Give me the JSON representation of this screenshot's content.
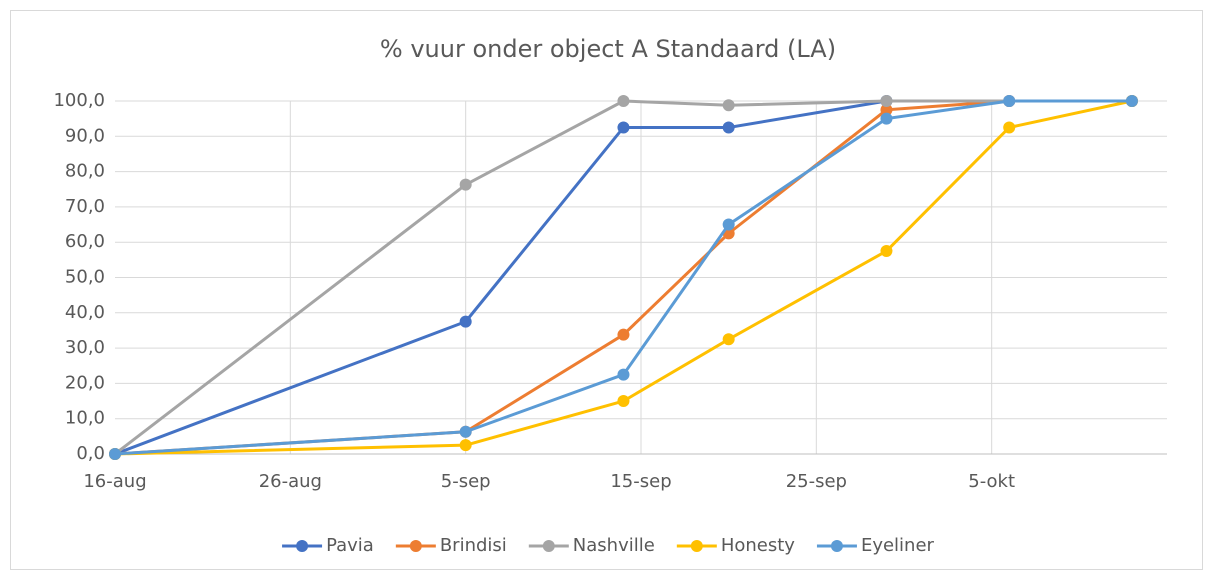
{
  "chart_data": {
    "type": "line",
    "title": "% vuur onder object A Standaard (LA)",
    "x": [
      "16-aug",
      "5-sep",
      "14-sep",
      "20-sep",
      "29-sep",
      "6-okt",
      "13-okt"
    ],
    "series": [
      {
        "name": "Pavia",
        "color": "#4472c4",
        "values": [
          0,
          37.5,
          92.5,
          92.5,
          100,
          100,
          100
        ]
      },
      {
        "name": "Brindisi",
        "color": "#ed7d31",
        "values": [
          0,
          6.3,
          33.8,
          62.5,
          97.5,
          100,
          100
        ]
      },
      {
        "name": "Nashville",
        "color": "#a5a5a5",
        "values": [
          0,
          76.3,
          100,
          98.8,
          100,
          100,
          100
        ]
      },
      {
        "name": "Honesty",
        "color": "#ffc000",
        "values": [
          0,
          2.5,
          15,
          32.5,
          57.5,
          92.5,
          100
        ]
      },
      {
        "name": "Eyeliner",
        "color": "#5b9bd5",
        "values": [
          0,
          6.3,
          22.5,
          65,
          95,
          100,
          100
        ]
      }
    ],
    "xlim": [
      "16-aug",
      "15-okt"
    ],
    "xticks": [
      "16-aug",
      "26-aug",
      "5-sep",
      "15-sep",
      "25-sep",
      "5-okt"
    ],
    "ylim": [
      0,
      100
    ],
    "yticks": [
      {
        "value": 0,
        "label": "0,0"
      },
      {
        "value": 10,
        "label": "10,0"
      },
      {
        "value": 20,
        "label": "20,0"
      },
      {
        "value": 30,
        "label": "30,0"
      },
      {
        "value": 40,
        "label": "40,0"
      },
      {
        "value": 50,
        "label": "50,0"
      },
      {
        "value": 60,
        "label": "60,0"
      },
      {
        "value": 70,
        "label": "70,0"
      },
      {
        "value": 80,
        "label": "80,0"
      },
      {
        "value": 90,
        "label": "90,0"
      },
      {
        "value": 100,
        "label": "100,0"
      }
    ],
    "grid": true,
    "legend": "bottom"
  }
}
